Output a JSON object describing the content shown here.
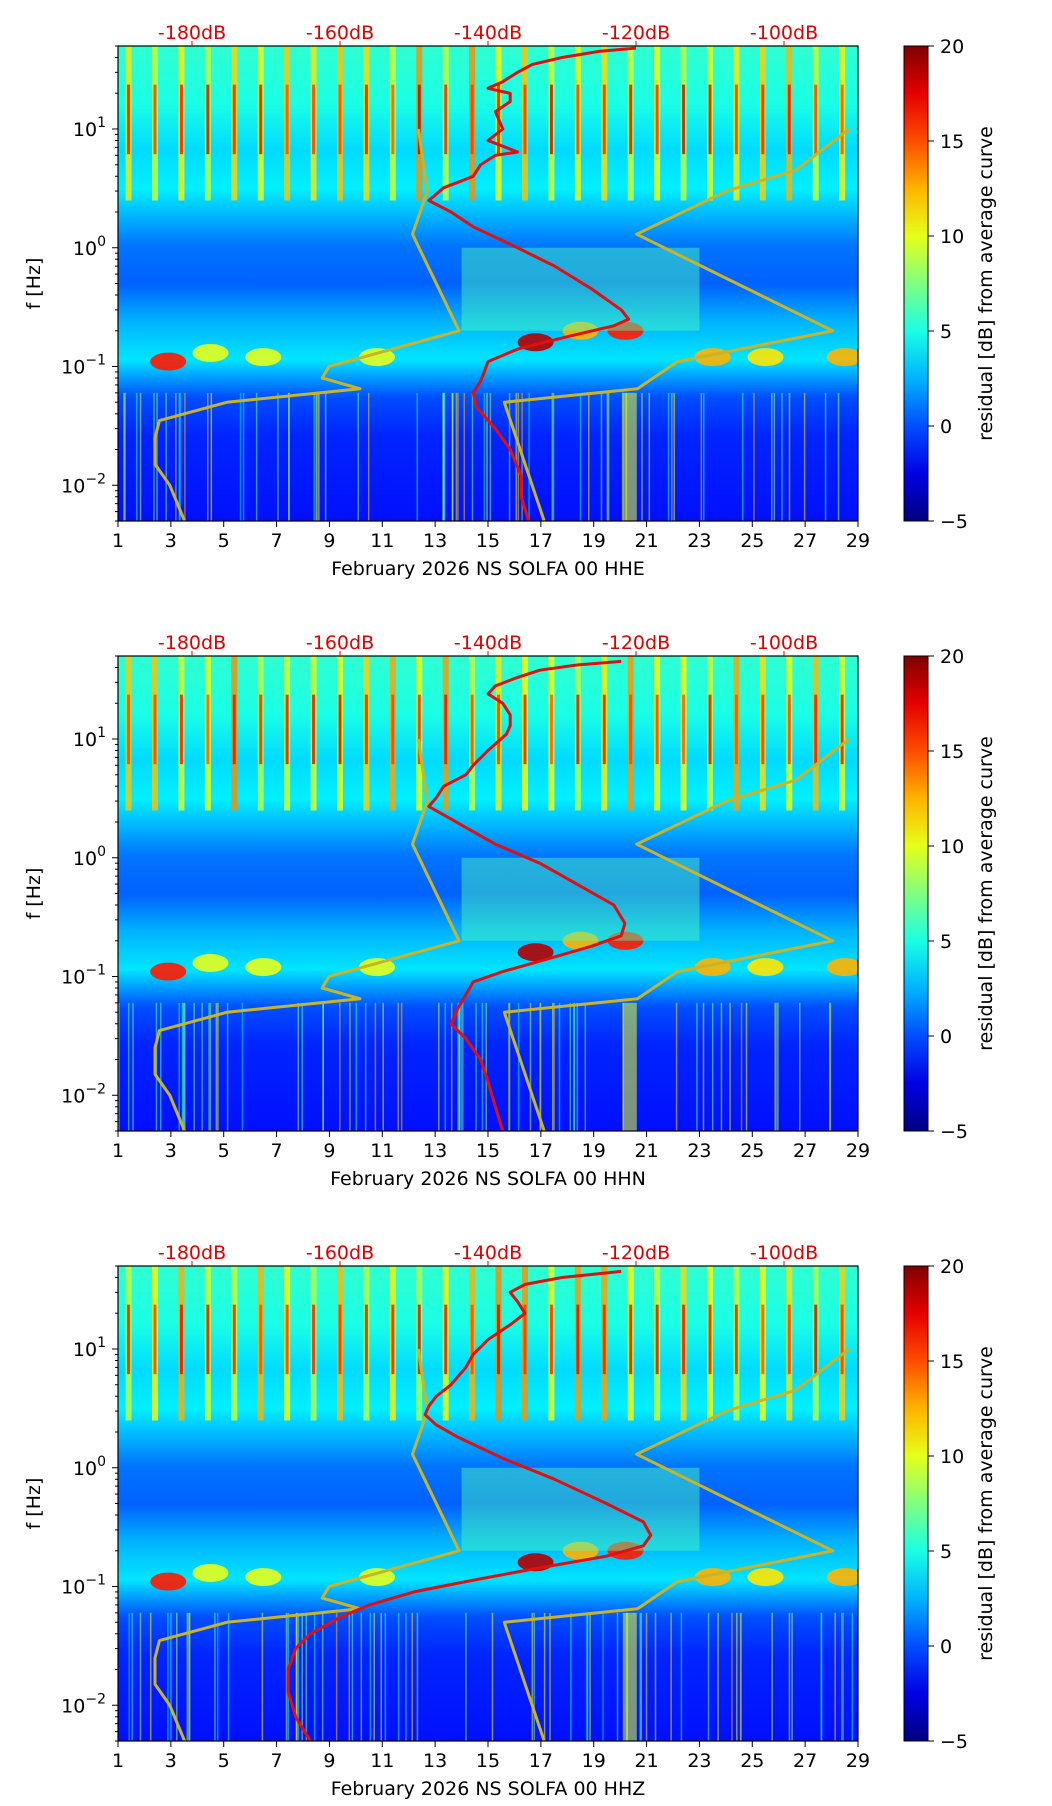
{
  "chart_data": [
    {
      "type": "heatmap",
      "xlabel": "February 2026 NS SOLFA 00 HHE",
      "ylabel": "f [Hz]",
      "x_ticks": [
        "1",
        "3",
        "5",
        "7",
        "9",
        "11",
        "13",
        "15",
        "17",
        "19",
        "21",
        "23",
        "25",
        "27",
        "29"
      ],
      "x_range": [
        1,
        29
      ],
      "y_scale": "log",
      "y_range": [
        0.005,
        50
      ],
      "y_ticks": [
        {
          "base": "10",
          "exp": "1",
          "value": 10
        },
        {
          "base": "10",
          "exp": "0",
          "value": 1
        },
        {
          "base": "10",
          "exp": "−1",
          "value": 0.1
        },
        {
          "base": "10",
          "exp": "−2",
          "value": 0.01
        }
      ],
      "top_labels": [
        "-180dB",
        "-160dB",
        "-140dB",
        "-120dB",
        "-100dB"
      ],
      "top_label_values": [
        -180,
        -160,
        -140,
        -120,
        -100
      ],
      "top_range": [
        -190,
        -90
      ],
      "colorbar": {
        "label": "residual [dB] from average curve",
        "range": [
          -5,
          20
        ],
        "ticks": [
          "−5",
          "0",
          "5",
          "10",
          "15",
          "20"
        ],
        "tick_values": [
          -5,
          0,
          5,
          10,
          15,
          20
        ]
      },
      "model_curves_color": "#c8b42a",
      "psd_curve_color": "#e01010",
      "low_model_curve": [
        [
          10,
          -149.4
        ],
        [
          3,
          -148.2
        ],
        [
          1.3,
          -150.2
        ],
        [
          0.2,
          -143.9
        ],
        [
          0.1,
          -161.5
        ],
        [
          0.08,
          -162.4
        ],
        [
          0.065,
          -157.3
        ],
        [
          0.05,
          -175.3
        ],
        [
          0.035,
          -184.4
        ],
        [
          0.025,
          -185
        ],
        [
          0.015,
          -185
        ],
        [
          0.01,
          -183
        ],
        [
          0.005,
          -181
        ]
      ],
      "high_model_curve": [
        [
          10,
          -91.2
        ],
        [
          4.5,
          -98.4
        ],
        [
          3,
          -107.8
        ],
        [
          1.3,
          -119.9
        ],
        [
          0.2,
          -93.4
        ],
        [
          0.11,
          -114.4
        ],
        [
          0.065,
          -119.8
        ],
        [
          0.05,
          -137.8
        ],
        [
          0.005,
          -132.4
        ]
      ],
      "psd_curve": [
        [
          48,
          -120
        ],
        [
          45,
          -125
        ],
        [
          40,
          -130
        ],
        [
          35,
          -134
        ],
        [
          30,
          -136
        ],
        [
          25,
          -138
        ],
        [
          22,
          -140
        ],
        [
          20,
          -137
        ],
        [
          17,
          -137
        ],
        [
          14,
          -139
        ],
        [
          10,
          -138
        ],
        [
          8,
          -140
        ],
        [
          6.4,
          -136
        ],
        [
          6,
          -139
        ],
        [
          5,
          -141
        ],
        [
          4,
          -142
        ],
        [
          3.2,
          -146
        ],
        [
          2.5,
          -148
        ],
        [
          2,
          -145
        ],
        [
          1.5,
          -142
        ],
        [
          1,
          -136
        ],
        [
          0.7,
          -131
        ],
        [
          0.45,
          -126
        ],
        [
          0.3,
          -122
        ],
        [
          0.25,
          -121
        ],
        [
          0.22,
          -123
        ],
        [
          0.18,
          -129
        ],
        [
          0.14,
          -136
        ],
        [
          0.11,
          -140
        ],
        [
          0.09,
          -140.5
        ],
        [
          0.075,
          -141
        ],
        [
          0.06,
          -142
        ],
        [
          0.045,
          -141.5
        ],
        [
          0.03,
          -139
        ],
        [
          0.02,
          -137
        ],
        [
          0.012,
          -135.5
        ],
        [
          0.008,
          -135.5
        ],
        [
          0.005,
          -134.5
        ]
      ]
    },
    {
      "type": "heatmap",
      "xlabel": "February 2026 NS SOLFA 00 HHN",
      "ylabel": "f [Hz]",
      "x_ticks": [
        "1",
        "3",
        "5",
        "7",
        "9",
        "11",
        "13",
        "15",
        "17",
        "19",
        "21",
        "23",
        "25",
        "27",
        "29"
      ],
      "x_range": [
        1,
        29
      ],
      "y_scale": "log",
      "y_range": [
        0.005,
        50
      ],
      "y_ticks": [
        {
          "base": "10",
          "exp": "1",
          "value": 10
        },
        {
          "base": "10",
          "exp": "0",
          "value": 1
        },
        {
          "base": "10",
          "exp": "−1",
          "value": 0.1
        },
        {
          "base": "10",
          "exp": "−2",
          "value": 0.01
        }
      ],
      "top_labels": [
        "-180dB",
        "-160dB",
        "-140dB",
        "-120dB",
        "-100dB"
      ],
      "top_label_values": [
        -180,
        -160,
        -140,
        -120,
        -100
      ],
      "top_range": [
        -190,
        -90
      ],
      "colorbar": {
        "label": "residual [dB] from average curve",
        "range": [
          -5,
          20
        ],
        "ticks": [
          "−5",
          "0",
          "5",
          "10",
          "15",
          "20"
        ],
        "tick_values": [
          -5,
          0,
          5,
          10,
          15,
          20
        ]
      },
      "model_curves_color": "#c8b42a",
      "psd_curve_color": "#e01010",
      "low_model_curve": [
        [
          10,
          -149.4
        ],
        [
          3,
          -148.2
        ],
        [
          1.3,
          -150.2
        ],
        [
          0.2,
          -143.9
        ],
        [
          0.1,
          -161.5
        ],
        [
          0.08,
          -162.4
        ],
        [
          0.065,
          -157.3
        ],
        [
          0.05,
          -175.3
        ],
        [
          0.035,
          -184.4
        ],
        [
          0.025,
          -185
        ],
        [
          0.015,
          -185
        ],
        [
          0.01,
          -183
        ],
        [
          0.005,
          -181
        ]
      ],
      "high_model_curve": [
        [
          10,
          -91.2
        ],
        [
          4.5,
          -98.4
        ],
        [
          3,
          -107.8
        ],
        [
          1.3,
          -119.9
        ],
        [
          0.2,
          -93.4
        ],
        [
          0.11,
          -114.4
        ],
        [
          0.065,
          -119.8
        ],
        [
          0.05,
          -137.8
        ],
        [
          0.005,
          -132.4
        ]
      ],
      "psd_curve": [
        [
          45,
          -122
        ],
        [
          42,
          -128
        ],
        [
          38,
          -133
        ],
        [
          33,
          -136
        ],
        [
          28,
          -139
        ],
        [
          24,
          -140
        ],
        [
          20,
          -138
        ],
        [
          16,
          -137
        ],
        [
          13,
          -137
        ],
        [
          11,
          -137.5
        ],
        [
          8,
          -140
        ],
        [
          6,
          -142
        ],
        [
          5,
          -143
        ],
        [
          4,
          -146
        ],
        [
          3.2,
          -147
        ],
        [
          2.7,
          -148
        ],
        [
          2.3,
          -146
        ],
        [
          1.8,
          -143
        ],
        [
          1.3,
          -139
        ],
        [
          0.9,
          -133
        ],
        [
          0.6,
          -128
        ],
        [
          0.4,
          -123
        ],
        [
          0.28,
          -121.5
        ],
        [
          0.22,
          -122
        ],
        [
          0.18,
          -126
        ],
        [
          0.14,
          -132
        ],
        [
          0.11,
          -138
        ],
        [
          0.09,
          -142
        ],
        [
          0.07,
          -143
        ],
        [
          0.055,
          -144
        ],
        [
          0.04,
          -145
        ],
        [
          0.03,
          -143
        ],
        [
          0.02,
          -141
        ],
        [
          0.013,
          -140
        ],
        [
          0.008,
          -139
        ],
        [
          0.005,
          -138
        ]
      ]
    },
    {
      "type": "heatmap",
      "xlabel": "February 2026 NS SOLFA 00 HHZ",
      "ylabel": "f [Hz]",
      "x_ticks": [
        "1",
        "3",
        "5",
        "7",
        "9",
        "11",
        "13",
        "15",
        "17",
        "19",
        "21",
        "23",
        "25",
        "27",
        "29"
      ],
      "x_range": [
        1,
        29
      ],
      "y_scale": "log",
      "y_range": [
        0.005,
        50
      ],
      "y_ticks": [
        {
          "base": "10",
          "exp": "1",
          "value": 10
        },
        {
          "base": "10",
          "exp": "0",
          "value": 1
        },
        {
          "base": "10",
          "exp": "−1",
          "value": 0.1
        },
        {
          "base": "10",
          "exp": "−2",
          "value": 0.01
        }
      ],
      "top_labels": [
        "-180dB",
        "-160dB",
        "-140dB",
        "-120dB",
        "-100dB"
      ],
      "top_label_values": [
        -180,
        -160,
        -140,
        -120,
        -100
      ],
      "top_range": [
        -190,
        -90
      ],
      "colorbar": {
        "label": "residual [dB] from average curve",
        "range": [
          -5,
          20
        ],
        "ticks": [
          "−5",
          "0",
          "5",
          "10",
          "15",
          "20"
        ],
        "tick_values": [
          -5,
          0,
          5,
          10,
          15,
          20
        ]
      },
      "model_curves_color": "#c8b42a",
      "psd_curve_color": "#e01010",
      "low_model_curve": [
        [
          10,
          -149.4
        ],
        [
          3,
          -148.2
        ],
        [
          1.3,
          -150.2
        ],
        [
          0.2,
          -143.9
        ],
        [
          0.1,
          -161.5
        ],
        [
          0.08,
          -162.4
        ],
        [
          0.065,
          -157.3
        ],
        [
          0.05,
          -175.3
        ],
        [
          0.035,
          -184.4
        ],
        [
          0.025,
          -185
        ],
        [
          0.015,
          -185
        ],
        [
          0.01,
          -183
        ],
        [
          0.005,
          -181
        ]
      ],
      "high_model_curve": [
        [
          10,
          -91.2
        ],
        [
          4.5,
          -98.4
        ],
        [
          3,
          -107.8
        ],
        [
          1.3,
          -119.9
        ],
        [
          0.2,
          -93.4
        ],
        [
          0.11,
          -114.4
        ],
        [
          0.065,
          -119.8
        ],
        [
          0.05,
          -137.8
        ],
        [
          0.005,
          -132.4
        ]
      ],
      "psd_curve": [
        [
          45,
          -122
        ],
        [
          40,
          -130
        ],
        [
          35,
          -135
        ],
        [
          30,
          -137
        ],
        [
          25,
          -136
        ],
        [
          20,
          -135
        ],
        [
          16,
          -137
        ],
        [
          12,
          -140
        ],
        [
          9,
          -142
        ],
        [
          7,
          -143
        ],
        [
          5,
          -145
        ],
        [
          4,
          -147
        ],
        [
          3.3,
          -148
        ],
        [
          2.8,
          -148.5
        ],
        [
          2.3,
          -147
        ],
        [
          1.8,
          -144
        ],
        [
          1.2,
          -138
        ],
        [
          0.8,
          -131
        ],
        [
          0.5,
          -124
        ],
        [
          0.35,
          -119
        ],
        [
          0.27,
          -118
        ],
        [
          0.22,
          -119
        ],
        [
          0.18,
          -124
        ],
        [
          0.14,
          -134
        ],
        [
          0.11,
          -143
        ],
        [
          0.09,
          -150
        ],
        [
          0.07,
          -156
        ],
        [
          0.055,
          -160
        ],
        [
          0.04,
          -164
        ],
        [
          0.03,
          -166
        ],
        [
          0.02,
          -167
        ],
        [
          0.013,
          -167
        ],
        [
          0.008,
          -166
        ],
        [
          0.005,
          -164
        ]
      ]
    }
  ]
}
